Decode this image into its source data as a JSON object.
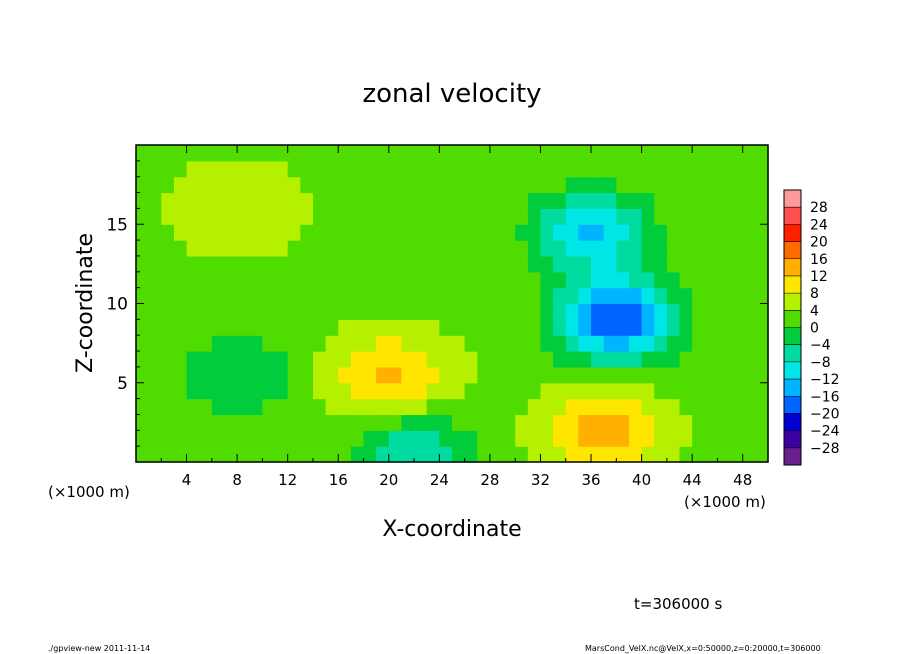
{
  "chart_data": {
    "type": "heatmap",
    "title": "zonal velocity",
    "xlabel": "X-coordinate",
    "ylabel": "Z-coordinate",
    "x_unit_label": "(×1000 m)",
    "x_unit_label_bottom_right": "(×1000 m)",
    "xlim": [
      0,
      50
    ],
    "ylim": [
      0,
      20
    ],
    "x_ticks": [
      "4",
      "8",
      "12",
      "16",
      "20",
      "24",
      "28",
      "32",
      "36",
      "40",
      "44",
      "48"
    ],
    "y_ticks": [
      "5",
      "10",
      "15"
    ],
    "colorbar": {
      "levels": [
        "28",
        "24",
        "20",
        "16",
        "12",
        "8",
        "4",
        "0",
        "−4",
        "−8",
        "−12",
        "−16",
        "−20",
        "−24",
        "−28"
      ],
      "colors": [
        "#ff9a9a",
        "#ff5050",
        "#ff2000",
        "#ff6a00",
        "#ffb000",
        "#ffe600",
        "#b4f000",
        "#50dc00",
        "#00cc3c",
        "#00dca0",
        "#00e6e6",
        "#00b4ff",
        "#0064ff",
        "#0000d2",
        "#3c00a0",
        "#6a1f8a"
      ]
    },
    "field_features": [
      {
        "x": 38,
        "z": 9,
        "value": -20
      },
      {
        "x": 36,
        "z": 14.5,
        "value": -12
      },
      {
        "x": 37,
        "z": 2,
        "value": 14
      },
      {
        "x": 20,
        "z": 5.5,
        "value": 13
      },
      {
        "x": 8,
        "z": 16,
        "value": 8
      },
      {
        "x": 8,
        "z": 5.5,
        "value": -4
      },
      {
        "x": 22,
        "z": 0.5,
        "value": -8
      }
    ]
  },
  "annotations": {
    "time": "t=306000 s",
    "footer_left": "./gpview-new  2011-11-14",
    "footer_right": "MarsCond_VelX.nc@VelX,x=0:50000,z=0:20000,t=306000"
  }
}
